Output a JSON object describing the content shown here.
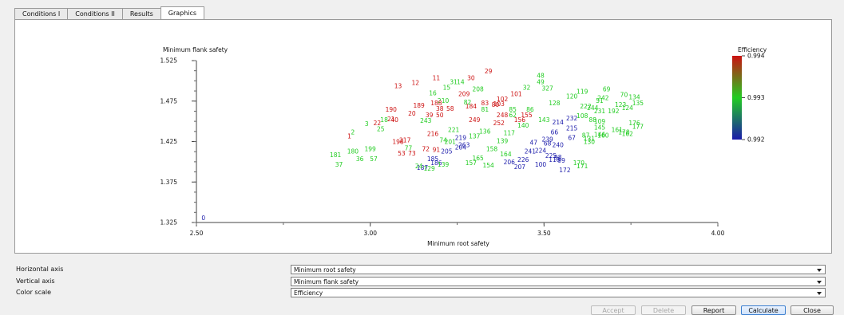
{
  "tabs": [
    {
      "label": "Conditions I",
      "active": false
    },
    {
      "label": "Conditions II",
      "active": false
    },
    {
      "label": "Results",
      "active": false
    },
    {
      "label": "Graphics",
      "active": true
    }
  ],
  "chart_data": {
    "type": "scatter",
    "xlabel": "Minimum root safety",
    "ylabel": "Minimum flank safety",
    "xlim": [
      2.5,
      4.0
    ],
    "ylim": [
      1.325,
      1.525
    ],
    "xticks": [
      "2.50",
      "3.00",
      "3.50",
      "4.00"
    ],
    "yticks": [
      "1.525",
      "1.475",
      "1.425",
      "1.375",
      "1.325"
    ],
    "grid": false,
    "colorbar": {
      "label": "Efficiency",
      "min": 0.992,
      "max": 0.994,
      "ticks": [
        "0.994",
        "0.993",
        "0.992"
      ],
      "colors": [
        "#cc1111",
        "#22cc22",
        "#1a1aaa"
      ]
    },
    "points": [
      {
        "label": "0",
        "x": 2.52,
        "y": 1.328,
        "c": "b"
      },
      {
        "label": "1",
        "x": 2.94,
        "y": 1.429,
        "c": "r"
      },
      {
        "label": "2",
        "x": 2.95,
        "y": 1.434,
        "c": "g"
      },
      {
        "label": "3",
        "x": 2.99,
        "y": 1.444,
        "c": "g"
      },
      {
        "label": "22",
        "x": 3.02,
        "y": 1.445,
        "c": "r"
      },
      {
        "label": "21",
        "x": 3.06,
        "y": 1.45,
        "c": "r"
      },
      {
        "label": "40",
        "x": 3.07,
        "y": 1.449,
        "c": "r"
      },
      {
        "label": "13",
        "x": 3.08,
        "y": 1.491,
        "c": "r"
      },
      {
        "label": "12",
        "x": 3.13,
        "y": 1.495,
        "c": "r"
      },
      {
        "label": "11",
        "x": 3.19,
        "y": 1.501,
        "c": "r"
      },
      {
        "label": "30",
        "x": 3.29,
        "y": 1.501,
        "c": "r"
      },
      {
        "label": "29",
        "x": 3.34,
        "y": 1.509,
        "c": "r"
      },
      {
        "label": "31",
        "x": 3.24,
        "y": 1.496,
        "c": "g"
      },
      {
        "label": "14",
        "x": 3.26,
        "y": 1.496,
        "c": "g"
      },
      {
        "label": "15",
        "x": 3.22,
        "y": 1.489,
        "c": "g"
      },
      {
        "label": "208",
        "x": 3.31,
        "y": 1.487,
        "c": "g"
      },
      {
        "label": "16",
        "x": 3.18,
        "y": 1.482,
        "c": "g"
      },
      {
        "label": "209",
        "x": 3.27,
        "y": 1.481,
        "c": "r"
      },
      {
        "label": "210",
        "x": 3.21,
        "y": 1.473,
        "c": "g"
      },
      {
        "label": "188",
        "x": 3.19,
        "y": 1.47,
        "c": "r"
      },
      {
        "label": "189",
        "x": 3.14,
        "y": 1.467,
        "c": "r"
      },
      {
        "label": "190",
        "x": 3.06,
        "y": 1.462,
        "c": "r"
      },
      {
        "label": "20",
        "x": 3.12,
        "y": 1.457,
        "c": "r"
      },
      {
        "label": "39",
        "x": 3.17,
        "y": 1.455,
        "c": "r"
      },
      {
        "label": "50",
        "x": 3.2,
        "y": 1.455,
        "c": "r"
      },
      {
        "label": "38",
        "x": 3.2,
        "y": 1.463,
        "c": "r"
      },
      {
        "label": "58",
        "x": 3.23,
        "y": 1.463,
        "c": "r"
      },
      {
        "label": "184",
        "x": 3.29,
        "y": 1.466,
        "c": "r"
      },
      {
        "label": "80",
        "x": 3.36,
        "y": 1.468,
        "c": "r"
      },
      {
        "label": "83",
        "x": 3.33,
        "y": 1.47,
        "c": "r"
      },
      {
        "label": "102",
        "x": 3.38,
        "y": 1.475,
        "c": "r"
      },
      {
        "label": "103",
        "x": 3.37,
        "y": 1.469,
        "c": "r"
      },
      {
        "label": "101",
        "x": 3.42,
        "y": 1.481,
        "c": "r"
      },
      {
        "label": "32",
        "x": 3.45,
        "y": 1.489,
        "c": "g"
      },
      {
        "label": "48",
        "x": 3.49,
        "y": 1.504,
        "c": "g"
      },
      {
        "label": "49",
        "x": 3.49,
        "y": 1.496,
        "c": "g"
      },
      {
        "label": "327",
        "x": 3.51,
        "y": 1.488,
        "c": "g"
      },
      {
        "label": "119",
        "x": 3.61,
        "y": 1.484,
        "c": "g"
      },
      {
        "label": "69",
        "x": 3.68,
        "y": 1.487,
        "c": "g"
      },
      {
        "label": "70",
        "x": 3.73,
        "y": 1.48,
        "c": "g"
      },
      {
        "label": "134",
        "x": 3.76,
        "y": 1.477,
        "c": "g"
      },
      {
        "label": "135",
        "x": 3.77,
        "y": 1.47,
        "c": "g"
      },
      {
        "label": "51",
        "x": 3.66,
        "y": 1.473,
        "c": "g"
      },
      {
        "label": "242",
        "x": 3.67,
        "y": 1.476,
        "c": "g"
      },
      {
        "label": "155",
        "x": 3.45,
        "y": 1.455,
        "c": "r"
      },
      {
        "label": "248",
        "x": 3.38,
        "y": 1.455,
        "c": "r"
      },
      {
        "label": "249",
        "x": 3.3,
        "y": 1.449,
        "c": "r"
      },
      {
        "label": "156",
        "x": 3.43,
        "y": 1.449,
        "c": "r"
      },
      {
        "label": "252",
        "x": 3.37,
        "y": 1.445,
        "c": "r"
      },
      {
        "label": "136",
        "x": 3.33,
        "y": 1.435,
        "c": "g"
      },
      {
        "label": "232",
        "x": 3.58,
        "y": 1.451,
        "c": "b"
      },
      {
        "label": "214",
        "x": 3.54,
        "y": 1.446,
        "c": "b"
      },
      {
        "label": "215",
        "x": 3.58,
        "y": 1.439,
        "c": "b"
      },
      {
        "label": "66",
        "x": 3.53,
        "y": 1.434,
        "c": "b"
      },
      {
        "label": "67",
        "x": 3.58,
        "y": 1.427,
        "c": "b"
      },
      {
        "label": "239",
        "x": 3.51,
        "y": 1.425,
        "c": "b"
      },
      {
        "label": "47",
        "x": 3.47,
        "y": 1.421,
        "c": "b"
      },
      {
        "label": "68",
        "x": 3.51,
        "y": 1.42,
        "c": "b"
      },
      {
        "label": "240",
        "x": 3.54,
        "y": 1.418,
        "c": "b"
      },
      {
        "label": "224",
        "x": 3.49,
        "y": 1.411,
        "c": "b"
      },
      {
        "label": "241",
        "x": 3.46,
        "y": 1.41,
        "c": "b"
      },
      {
        "label": "225",
        "x": 3.52,
        "y": 1.405,
        "c": "b"
      },
      {
        "label": "98",
        "x": 3.54,
        "y": 1.403,
        "c": "b"
      },
      {
        "label": "118",
        "x": 3.53,
        "y": 1.4,
        "c": "b"
      },
      {
        "label": "99",
        "x": 3.55,
        "y": 1.399,
        "c": "b"
      },
      {
        "label": "226",
        "x": 3.44,
        "y": 1.4,
        "c": "b"
      },
      {
        "label": "206",
        "x": 3.4,
        "y": 1.397,
        "c": "b"
      },
      {
        "label": "100",
        "x": 3.49,
        "y": 1.394,
        "c": "b"
      },
      {
        "label": "207",
        "x": 3.43,
        "y": 1.391,
        "c": "b"
      },
      {
        "label": "172",
        "x": 3.56,
        "y": 1.387,
        "c": "b"
      },
      {
        "label": "170",
        "x": 3.6,
        "y": 1.396,
        "c": "g"
      },
      {
        "label": "171",
        "x": 3.61,
        "y": 1.392,
        "c": "g"
      },
      {
        "label": "154",
        "x": 3.34,
        "y": 1.393,
        "c": "g"
      },
      {
        "label": "157",
        "x": 3.29,
        "y": 1.396,
        "c": "g"
      },
      {
        "label": "219",
        "x": 3.26,
        "y": 1.427,
        "c": "b"
      },
      {
        "label": "263",
        "x": 3.27,
        "y": 1.418,
        "c": "b"
      },
      {
        "label": "204",
        "x": 3.26,
        "y": 1.415,
        "c": "b"
      },
      {
        "label": "205",
        "x": 3.22,
        "y": 1.41,
        "c": "b"
      },
      {
        "label": "185",
        "x": 3.18,
        "y": 1.401,
        "c": "b"
      },
      {
        "label": "186",
        "x": 3.19,
        "y": 1.396,
        "c": "b"
      },
      {
        "label": "187",
        "x": 3.15,
        "y": 1.39,
        "c": "b"
      },
      {
        "label": "198",
        "x": 3.08,
        "y": 1.422,
        "c": "r"
      },
      {
        "label": "217",
        "x": 3.1,
        "y": 1.424,
        "c": "r"
      },
      {
        "label": "216",
        "x": 3.18,
        "y": 1.432,
        "c": "r"
      },
      {
        "label": "72",
        "x": 3.16,
        "y": 1.413,
        "c": "r"
      },
      {
        "label": "91",
        "x": 3.19,
        "y": 1.412,
        "c": "r"
      },
      {
        "label": "53",
        "x": 3.09,
        "y": 1.408,
        "c": "r"
      },
      {
        "label": "73",
        "x": 3.12,
        "y": 1.408,
        "c": "r"
      },
      {
        "label": "181",
        "x": 2.9,
        "y": 1.406,
        "c": "g"
      },
      {
        "label": "180",
        "x": 2.95,
        "y": 1.41,
        "c": "g"
      },
      {
        "label": "199",
        "x": 3.0,
        "y": 1.413,
        "c": "g"
      },
      {
        "label": "36",
        "x": 2.97,
        "y": 1.401,
        "c": "g"
      },
      {
        "label": "37",
        "x": 2.91,
        "y": 1.394,
        "c": "g"
      },
      {
        "label": "57",
        "x": 3.01,
        "y": 1.401,
        "c": "g"
      },
      {
        "label": "25",
        "x": 3.03,
        "y": 1.438,
        "c": "g"
      },
      {
        "label": "176",
        "x": 3.76,
        "y": 1.445,
        "c": "g"
      },
      {
        "label": "177",
        "x": 3.77,
        "y": 1.441,
        "c": "g"
      },
      {
        "label": "161",
        "x": 3.71,
        "y": 1.437,
        "c": "g"
      },
      {
        "label": "162",
        "x": 3.74,
        "y": 1.432,
        "c": "g"
      },
      {
        "label": "178",
        "x": 3.73,
        "y": 1.434,
        "c": "g"
      },
      {
        "label": "160",
        "x": 3.67,
        "y": 1.43,
        "c": "g"
      },
      {
        "label": "146",
        "x": 3.66,
        "y": 1.431,
        "c": "g"
      },
      {
        "label": "131",
        "x": 3.63,
        "y": 1.426,
        "c": "g"
      },
      {
        "label": "130",
        "x": 3.63,
        "y": 1.422,
        "c": "g"
      },
      {
        "label": "145",
        "x": 3.66,
        "y": 1.44,
        "c": "g"
      },
      {
        "label": "109",
        "x": 3.66,
        "y": 1.447,
        "c": "g"
      },
      {
        "label": "87",
        "x": 3.62,
        "y": 1.43,
        "c": "g"
      },
      {
        "label": "88",
        "x": 3.64,
        "y": 1.449,
        "c": "g"
      },
      {
        "label": "108",
        "x": 3.61,
        "y": 1.454,
        "c": "g"
      },
      {
        "label": "231",
        "x": 3.66,
        "y": 1.46,
        "c": "g"
      },
      {
        "label": "222",
        "x": 3.62,
        "y": 1.466,
        "c": "g"
      },
      {
        "label": "244",
        "x": 3.64,
        "y": 1.464,
        "c": "g"
      },
      {
        "label": "123",
        "x": 3.72,
        "y": 1.468,
        "c": "g"
      },
      {
        "label": "124",
        "x": 3.74,
        "y": 1.464,
        "c": "g"
      },
      {
        "label": "192",
        "x": 3.7,
        "y": 1.46,
        "c": "g"
      },
      {
        "label": "120",
        "x": 3.58,
        "y": 1.478,
        "c": "g"
      },
      {
        "label": "128",
        "x": 3.53,
        "y": 1.47,
        "c": "g"
      },
      {
        "label": "164",
        "x": 3.39,
        "y": 1.407,
        "c": "g"
      },
      {
        "label": "165",
        "x": 3.31,
        "y": 1.402,
        "c": "g"
      },
      {
        "label": "158",
        "x": 3.35,
        "y": 1.413,
        "c": "g"
      },
      {
        "label": "139",
        "x": 3.38,
        "y": 1.423,
        "c": "g"
      },
      {
        "label": "137",
        "x": 3.3,
        "y": 1.429,
        "c": "g"
      },
      {
        "label": "117",
        "x": 3.4,
        "y": 1.433,
        "c": "g"
      },
      {
        "label": "140",
        "x": 3.44,
        "y": 1.442,
        "c": "g"
      },
      {
        "label": "143",
        "x": 3.5,
        "y": 1.449,
        "c": "g"
      },
      {
        "label": "86",
        "x": 3.46,
        "y": 1.462,
        "c": "g"
      },
      {
        "label": "85",
        "x": 3.41,
        "y": 1.462,
        "c": "g"
      },
      {
        "label": "62",
        "x": 3.41,
        "y": 1.455,
        "c": "g"
      },
      {
        "label": "82",
        "x": 3.28,
        "y": 1.471,
        "c": "g"
      },
      {
        "label": "81",
        "x": 3.33,
        "y": 1.462,
        "c": "g"
      },
      {
        "label": "24",
        "x": 3.14,
        "y": 1.392,
        "c": "g"
      },
      {
        "label": "129",
        "x": 3.17,
        "y": 1.389,
        "c": "g"
      },
      {
        "label": "139",
        "x": 3.21,
        "y": 1.394,
        "c": "g"
      },
      {
        "label": "74",
        "x": 3.21,
        "y": 1.424,
        "c": "g"
      },
      {
        "label": "201",
        "x": 3.23,
        "y": 1.422,
        "c": "g"
      },
      {
        "label": "221",
        "x": 3.24,
        "y": 1.437,
        "c": "g"
      },
      {
        "label": "77",
        "x": 3.11,
        "y": 1.414,
        "c": "g"
      },
      {
        "label": "18",
        "x": 3.04,
        "y": 1.449,
        "c": "g"
      },
      {
        "label": "243",
        "x": 3.16,
        "y": 1.448,
        "c": "g"
      }
    ]
  },
  "axis_settings": [
    {
      "label": "Horizontal axis",
      "value": "Minimum root safety"
    },
    {
      "label": "Vertical axis",
      "value": "Minimum flank safety"
    },
    {
      "label": "Color scale",
      "value": "Efficiency"
    }
  ],
  "buttons": {
    "accept": "Accept",
    "delete": "Delete",
    "report": "Report",
    "calculate": "Calculate",
    "close": "Close"
  }
}
